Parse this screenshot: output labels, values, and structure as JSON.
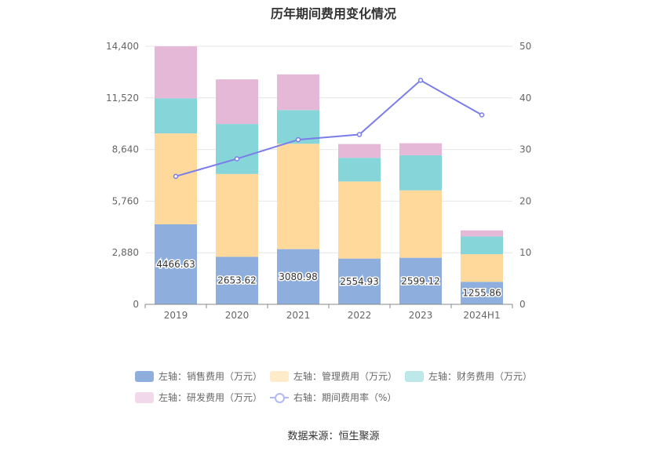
{
  "title": "历年期间费用变化情况",
  "source": "数据来源：恒生聚源",
  "colors": {
    "sales": "#8eaedd",
    "management": "#ffd89c",
    "finance": "#86d6d9",
    "rnd": "#e6b8d8",
    "ratio": "#7a7de8",
    "axis": "#888888",
    "grid": "#e6e6e6"
  },
  "chart_data": {
    "type": "bar",
    "stacked": true,
    "categories": [
      "2019",
      "2020",
      "2021",
      "2022",
      "2023",
      "2024H1"
    ],
    "left_axis": {
      "ticks": [
        "0",
        "2,880",
        "5,760",
        "8,640",
        "11,520",
        "14,400"
      ],
      "ylim": [
        0,
        14400
      ]
    },
    "right_axis": {
      "ticks": [
        "0",
        "10",
        "20",
        "30",
        "40",
        "50"
      ],
      "ylim": [
        0,
        50
      ]
    },
    "series": [
      {
        "name": "左轴：销售费用（万元）",
        "key": "sales",
        "axis": "left",
        "values": [
          4466.63,
          2653.62,
          3080.98,
          2554.93,
          2599.12,
          1255.86
        ],
        "labels": [
          "4466.63",
          "2653.62",
          "3080.98",
          "2554.93",
          "2599.12",
          "1255.86"
        ]
      },
      {
        "name": "左轴：管理费用（万元）",
        "key": "management",
        "axis": "left",
        "values": [
          5070,
          4620,
          5880,
          4300,
          3760,
          1540
        ]
      },
      {
        "name": "左轴：财务费用（万元）",
        "key": "finance",
        "axis": "left",
        "values": [
          1960,
          2790,
          1880,
          1320,
          1960,
          990
        ]
      },
      {
        "name": "左轴：研发费用（万元）",
        "key": "rnd",
        "axis": "left",
        "values": [
          2900,
          2490,
          1990,
          770,
          670,
          340
        ]
      },
      {
        "name": "右轴：期间费用率（%）",
        "key": "ratio",
        "axis": "right",
        "type": "line",
        "values": [
          24.8,
          28.2,
          31.9,
          32.9,
          43.4,
          36.7
        ]
      }
    ],
    "grid": true,
    "legend_position": "bottom"
  }
}
